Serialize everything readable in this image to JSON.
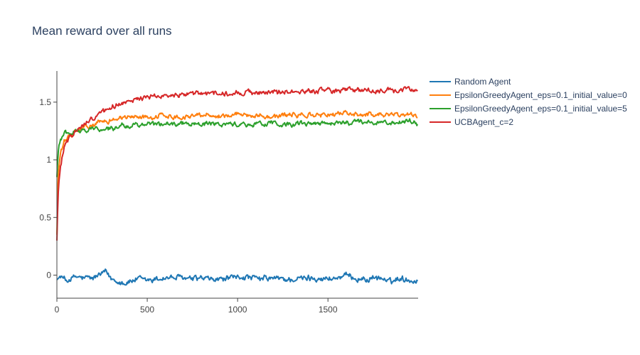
{
  "chart_data": {
    "type": "line",
    "title": "Mean reward over all runs",
    "xlabel": "",
    "ylabel": "",
    "xlim": [
      0,
      1999
    ],
    "ylim": [
      -0.2,
      1.77
    ],
    "xticks": [
      0,
      500,
      1000,
      1500
    ],
    "xtick_labels": [
      "0",
      "500",
      "1000",
      "1500"
    ],
    "yticks": [
      0,
      0.5,
      1,
      1.5
    ],
    "ytick_labels": [
      "0",
      "0.5",
      "1",
      "1.5"
    ],
    "grid": false,
    "legend_position": "top-right outside",
    "series": [
      {
        "name": "Random Agent",
        "color": "#1f77b4",
        "noise": 0.025,
        "x": [
          0,
          20,
          50,
          100,
          150,
          200,
          270,
          300,
          380,
          450,
          500,
          600,
          700,
          800,
          900,
          1000,
          1100,
          1200,
          1300,
          1400,
          1500,
          1600,
          1700,
          1800,
          1840,
          1900,
          1999
        ],
        "y": [
          -0.04,
          -0.01,
          -0.05,
          -0.02,
          -0.03,
          -0.03,
          0.03,
          -0.03,
          -0.06,
          -0.04,
          -0.04,
          -0.02,
          -0.03,
          -0.02,
          -0.04,
          -0.01,
          -0.04,
          -0.03,
          -0.04,
          -0.03,
          -0.03,
          -0.02,
          -0.03,
          -0.03,
          -0.06,
          -0.02,
          -0.05
        ]
      },
      {
        "name": "EpsilonGreedyAgent_eps=0.1_initial_value=0",
        "color": "#ff7f0e",
        "noise": 0.02,
        "x": [
          0,
          5,
          10,
          20,
          40,
          60,
          80,
          100,
          150,
          200,
          250,
          300,
          350,
          400,
          500,
          600,
          700,
          800,
          900,
          1000,
          1100,
          1200,
          1300,
          1400,
          1500,
          1600,
          1700,
          1800,
          1900,
          1999
        ],
        "y": [
          0.35,
          0.8,
          0.92,
          1.05,
          1.15,
          1.19,
          1.21,
          1.24,
          1.28,
          1.3,
          1.33,
          1.35,
          1.36,
          1.37,
          1.37,
          1.38,
          1.38,
          1.39,
          1.38,
          1.39,
          1.39,
          1.38,
          1.39,
          1.38,
          1.39,
          1.4,
          1.39,
          1.4,
          1.39,
          1.38
        ]
      },
      {
        "name": "EpsilonGreedyAgent_eps=0.1_initial_value=5",
        "color": "#2ca02c",
        "noise": 0.02,
        "x": [
          0,
          5,
          10,
          20,
          40,
          60,
          100,
          150,
          200,
          300,
          400,
          500,
          600,
          700,
          800,
          900,
          1000,
          1100,
          1200,
          1300,
          1400,
          1500,
          1600,
          1700,
          1800,
          1900,
          1980,
          1999
        ],
        "y": [
          0.85,
          1.0,
          1.12,
          1.2,
          1.23,
          1.24,
          1.25,
          1.26,
          1.27,
          1.28,
          1.3,
          1.3,
          1.31,
          1.32,
          1.31,
          1.31,
          1.31,
          1.31,
          1.31,
          1.3,
          1.31,
          1.31,
          1.32,
          1.33,
          1.32,
          1.32,
          1.34,
          1.29
        ]
      },
      {
        "name": "UCBAgent_c=2",
        "color": "#d62728",
        "noise": 0.022,
        "x": [
          0,
          5,
          10,
          20,
          40,
          60,
          80,
          100,
          150,
          200,
          250,
          300,
          400,
          500,
          600,
          700,
          800,
          900,
          1000,
          1100,
          1200,
          1300,
          1400,
          1500,
          1600,
          1700,
          1800,
          1900,
          1999
        ],
        "y": [
          0.3,
          0.6,
          0.8,
          0.95,
          1.1,
          1.16,
          1.2,
          1.25,
          1.3,
          1.37,
          1.42,
          1.46,
          1.52,
          1.54,
          1.56,
          1.57,
          1.58,
          1.57,
          1.59,
          1.58,
          1.59,
          1.59,
          1.6,
          1.6,
          1.6,
          1.6,
          1.6,
          1.6,
          1.61
        ]
      }
    ]
  }
}
